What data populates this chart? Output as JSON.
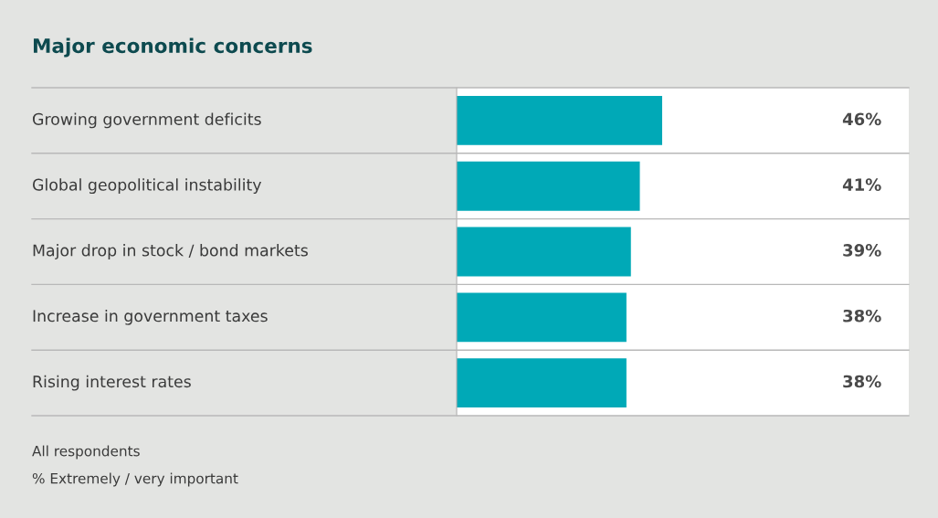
{
  "chart_data": {
    "type": "bar",
    "orientation": "horizontal",
    "title": "Major economic concerns",
    "categories": [
      "Growing government deficits",
      "Global geopolitical instability",
      "Major drop in stock / bond markets",
      "Increase in government taxes",
      "Rising interest rates"
    ],
    "values": [
      46,
      41,
      39,
      38,
      38
    ],
    "color": "#00a9b7",
    "value_labels": [
      "46%",
      "41%",
      "39%",
      "38%",
      "38%"
    ],
    "annotations": [
      "All respondents",
      "% Extremely / very important"
    ]
  }
}
